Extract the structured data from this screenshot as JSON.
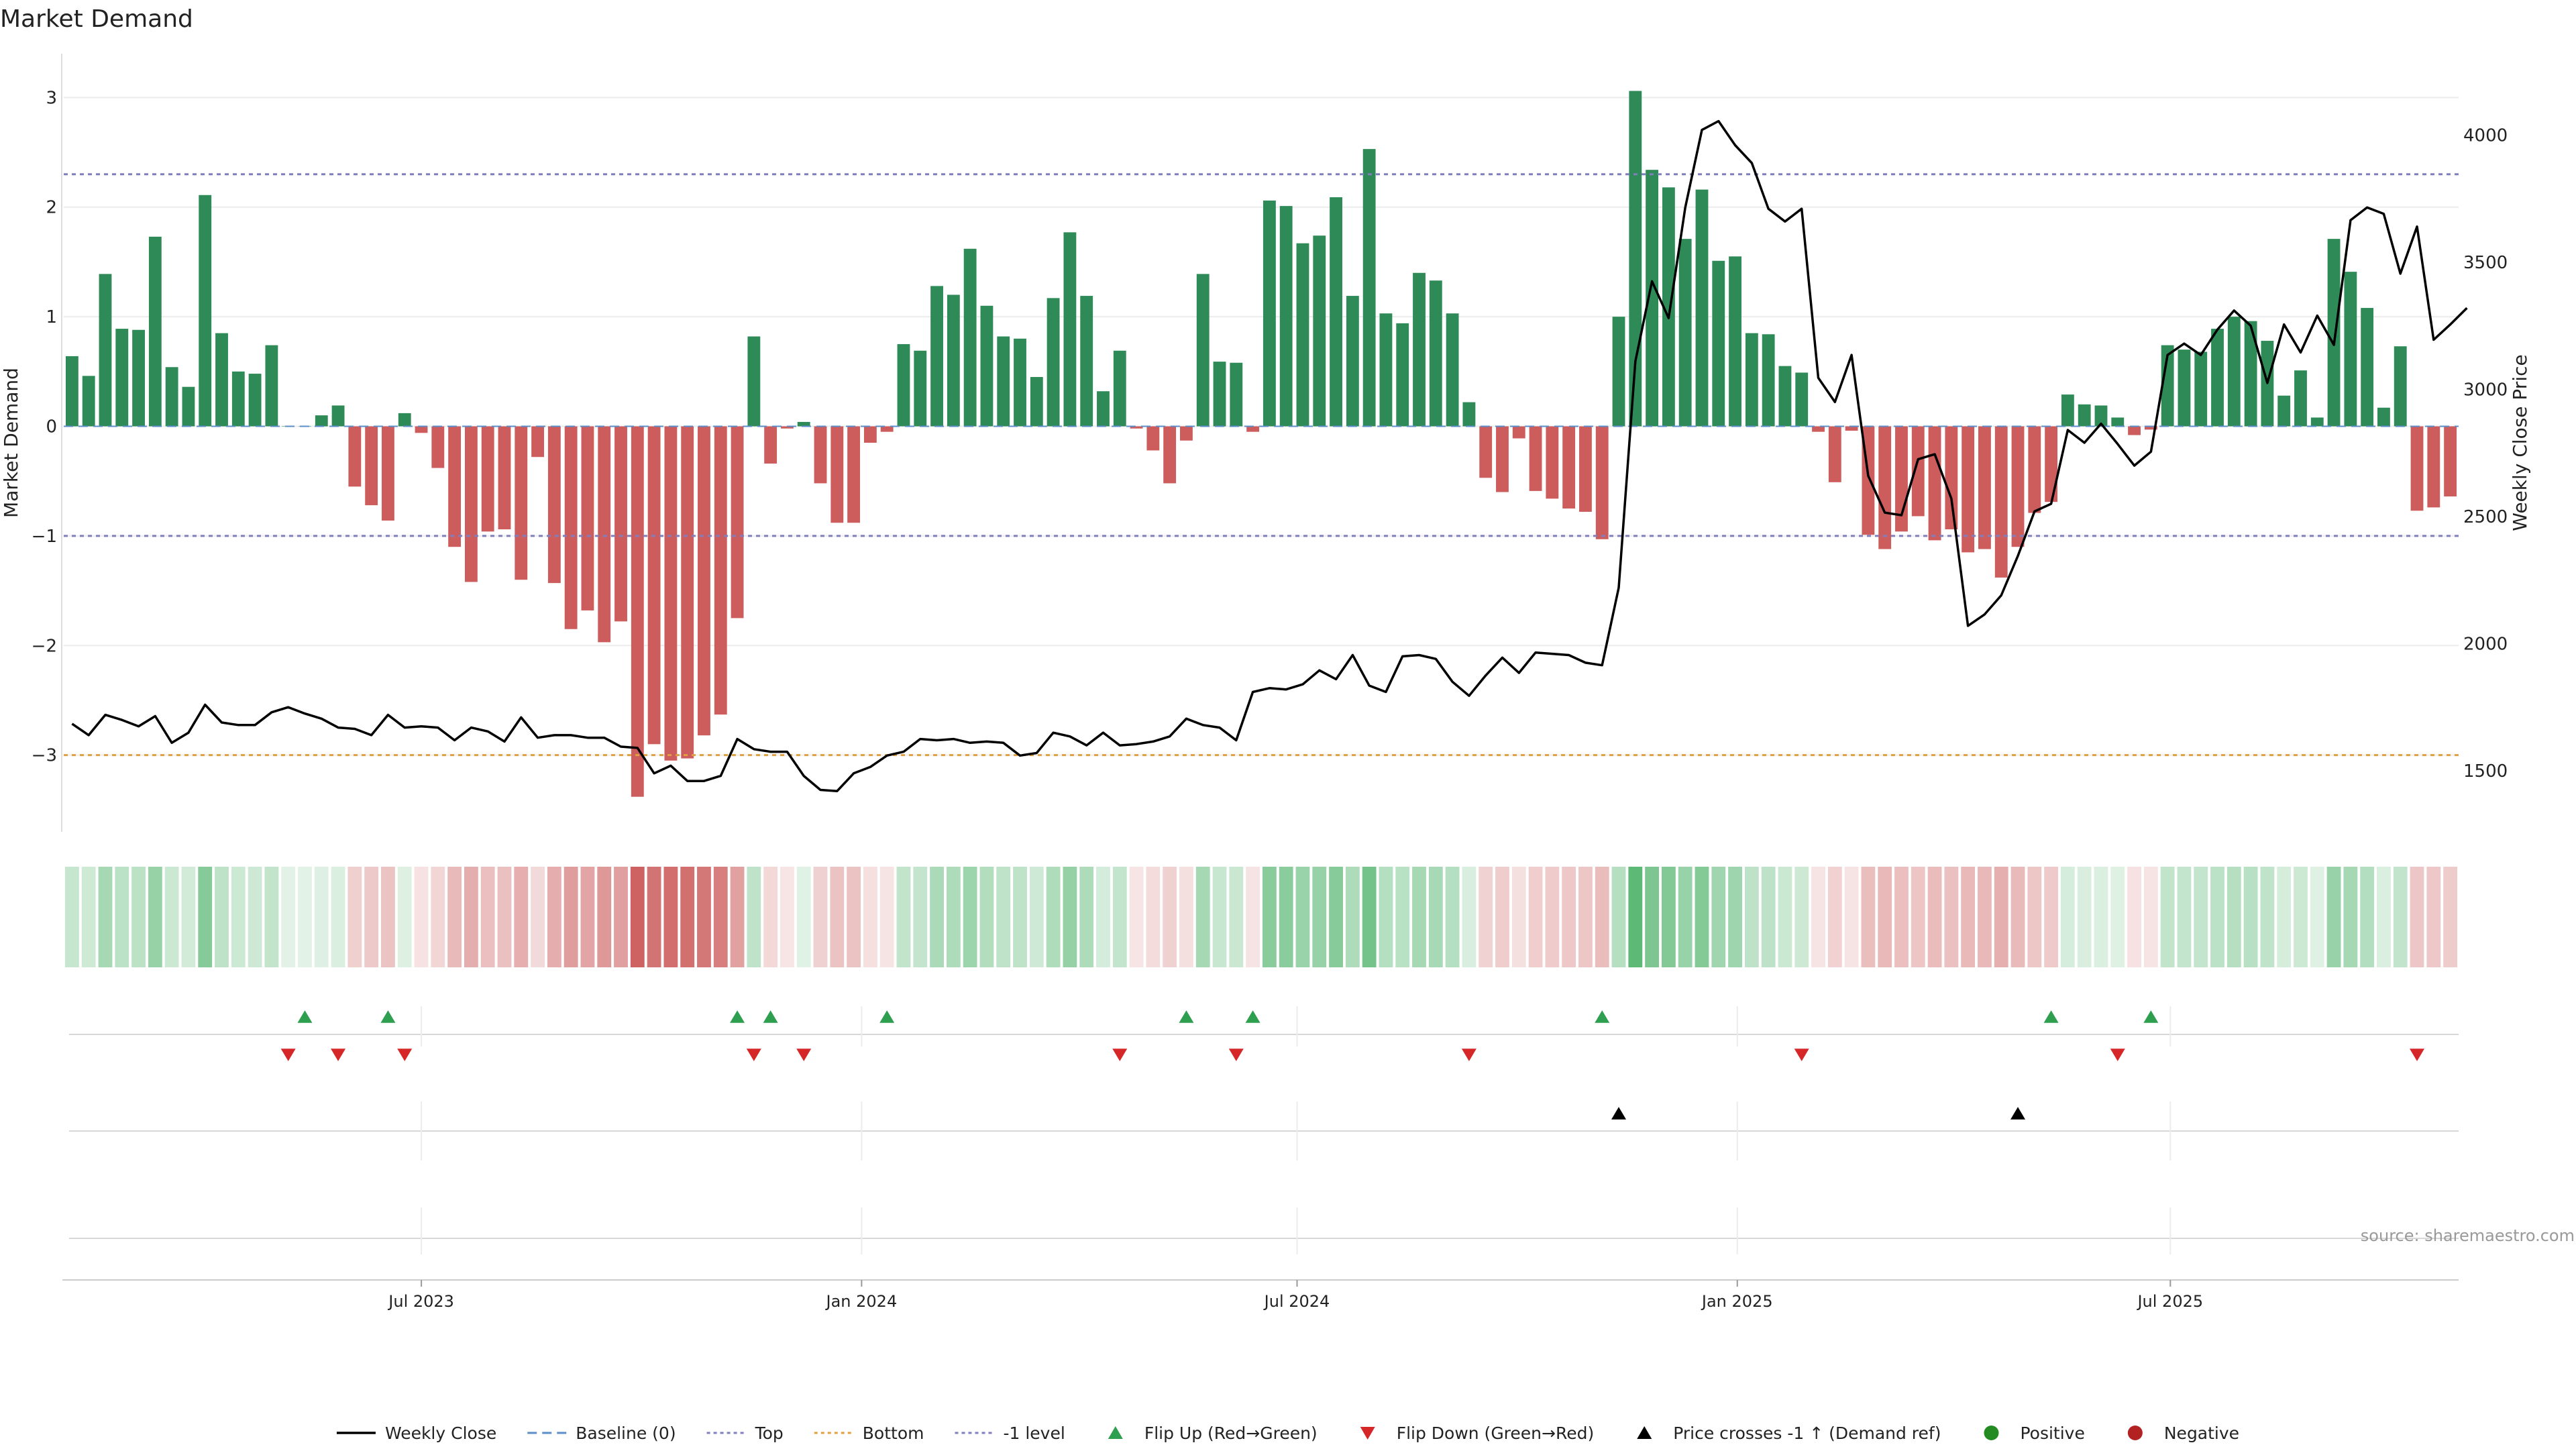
{
  "chart_data": {
    "type": "bar",
    "title": "Market Demand",
    "ylabel": "Market Demand",
    "y2label": "Weekly Close Price",
    "ylim": [
      -3.7,
      3.4
    ],
    "y2lim": [
      1260,
      4320
    ],
    "yticks": [
      -3,
      -2,
      -1,
      0,
      1,
      2,
      3
    ],
    "y2ticks": [
      1500,
      2000,
      2500,
      3000,
      3500,
      4000
    ],
    "x_start": "2023-02-05",
    "x_end": "2025-10-26",
    "xticks": [
      {
        "date": "2023-07-01",
        "label": "Jul 2023"
      },
      {
        "date": "2024-01-01",
        "label": "Jan 2024"
      },
      {
        "date": "2024-07-01",
        "label": "Jul 2024"
      },
      {
        "date": "2025-01-01",
        "label": "Jan 2025"
      },
      {
        "date": "2025-07-01",
        "label": "Jul 2025"
      }
    ],
    "reference_lines": [
      {
        "name": "Top",
        "value": 2.3,
        "color": "#7f7fbf"
      },
      {
        "name": "-1 level",
        "value": -1.0,
        "color": "#7f7fbf"
      },
      {
        "name": "Bottom",
        "value": -3.0,
        "color": "#e0a040"
      }
    ],
    "series": [
      {
        "name": "Market Demand",
        "kind": "bar",
        "values": [
          0.64,
          0.46,
          1.39,
          0.89,
          0.88,
          1.73,
          0.54,
          0.36,
          2.11,
          0.85,
          0.5,
          0.48,
          0.74,
          0.0,
          0.0,
          0.1,
          0.19,
          -0.55,
          -0.72,
          -0.86,
          0.12,
          -0.06,
          -0.38,
          -1.1,
          -1.42,
          -0.96,
          -0.94,
          -1.4,
          -0.28,
          -1.43,
          -1.85,
          -1.68,
          -1.97,
          -1.78,
          -3.38,
          -2.9,
          -3.05,
          -3.03,
          -2.82,
          -2.63,
          -1.75,
          0.82,
          -0.34,
          -0.02,
          0.04,
          -0.52,
          -0.88,
          -0.88,
          -0.15,
          -0.05,
          0.75,
          0.69,
          1.28,
          1.2,
          1.62,
          1.1,
          0.82,
          0.8,
          0.45,
          1.17,
          1.77,
          1.19,
          0.32,
          0.69,
          -0.02,
          -0.22,
          -0.52,
          -0.13,
          1.39,
          0.59,
          0.58,
          -0.05,
          2.06,
          2.01,
          1.67,
          1.74,
          2.09,
          1.19,
          2.53,
          1.03,
          0.94,
          1.4,
          1.33,
          1.03,
          0.22,
          -0.47,
          -0.6,
          -0.11,
          -0.59,
          -0.66,
          -0.75,
          -0.78,
          -1.03,
          1.0,
          3.06,
          2.34,
          2.18,
          1.71,
          2.16,
          1.51,
          1.55,
          0.85,
          0.84,
          0.55,
          0.49,
          -0.05,
          -0.51,
          -0.04,
          -0.99,
          -1.12,
          -0.96,
          -0.82,
          -1.04,
          -0.94,
          -1.15,
          -1.12,
          -1.38,
          -1.1,
          -0.79,
          -0.69,
          0.29,
          0.2,
          0.19,
          0.08,
          -0.08,
          -0.03,
          0.74,
          0.7,
          0.68,
          0.89,
          1.0,
          0.96,
          0.78,
          0.28,
          0.51,
          0.08,
          1.71,
          1.41,
          1.08,
          0.17,
          0.73,
          -0.77,
          -0.74,
          -0.64
        ]
      },
      {
        "name": "Weekly Close",
        "kind": "line",
        "values": [
          1685,
          1640,
          1720,
          1700,
          1675,
          1715,
          1610,
          1650,
          1760,
          1690,
          1680,
          1680,
          1730,
          1750,
          1725,
          1705,
          1670,
          1665,
          1640,
          1720,
          1670,
          1675,
          1670,
          1620,
          1670,
          1655,
          1615,
          1710,
          1630,
          1640,
          1640,
          1630,
          1630,
          1595,
          1590,
          1490,
          1520,
          1460,
          1460,
          1480,
          1625,
          1585,
          1575,
          1575,
          1480,
          1425,
          1420,
          1490,
          1515,
          1560,
          1575,
          1625,
          1620,
          1625,
          1610,
          1615,
          1610,
          1560,
          1570,
          1650,
          1635,
          1600,
          1650,
          1600,
          1605,
          1615,
          1635,
          1705,
          1680,
          1670,
          1620,
          1810,
          1825,
          1820,
          1840,
          1895,
          1860,
          1955,
          1835,
          1810,
          1950,
          1955,
          1940,
          1850,
          1795,
          1875,
          1945,
          1885,
          1965,
          1960,
          1955,
          1925,
          1915,
          2220,
          3110,
          3425,
          3280,
          3715,
          4020,
          4055,
          3960,
          3890,
          3710,
          3660,
          3710,
          3045,
          2950,
          3135,
          2660,
          2515,
          2505,
          2725,
          2745,
          2570,
          2070,
          2115,
          2190,
          2345,
          2520,
          2550,
          2840,
          2790,
          2865,
          2785,
          2700,
          2755,
          3135,
          3180,
          3135,
          3235,
          3310,
          3250,
          3025,
          3255,
          3145,
          3290,
          3175,
          3665,
          3715,
          3690,
          3455,
          3640,
          3195,
          3255,
          3320
        ]
      }
    ],
    "flip_up_indices": [
      14,
      19,
      40,
      42,
      49,
      67,
      71,
      92,
      119,
      125
    ],
    "flip_down_indices": [
      13,
      16,
      20,
      41,
      44,
      63,
      70,
      84,
      104,
      123,
      141
    ],
    "price_cross_indices": [
      93,
      117
    ],
    "legend": {
      "position": "bottom",
      "items": [
        {
          "label": "Weekly Close",
          "kind": "line"
        },
        {
          "label": "Baseline (0)",
          "kind": "dash"
        },
        {
          "label": "Top",
          "kind": "dot-purple"
        },
        {
          "label": "Bottom",
          "kind": "dot-orange"
        },
        {
          "label": "-1 level",
          "kind": "dot-purple"
        },
        {
          "label": "Flip Up (Red→Green)",
          "kind": "tri-up-green"
        },
        {
          "label": "Flip Down (Green→Red)",
          "kind": "tri-down-red"
        },
        {
          "label": "Price crosses -1 ↑ (Demand ref)",
          "kind": "tri-up-black"
        },
        {
          "label": "Positive",
          "kind": "circle-green"
        },
        {
          "label": "Negative",
          "kind": "circle-red"
        }
      ]
    },
    "source": "source: sharemaestro.com"
  },
  "colors": {
    "positive": "#2e8b57",
    "negative": "#cd5c5c",
    "price_line": "#000000",
    "flip_up": "#2e9e4f",
    "flip_down": "#d62728",
    "cross": "#000000",
    "legend_positive": "#228b22",
    "legend_negative": "#b22222"
  }
}
